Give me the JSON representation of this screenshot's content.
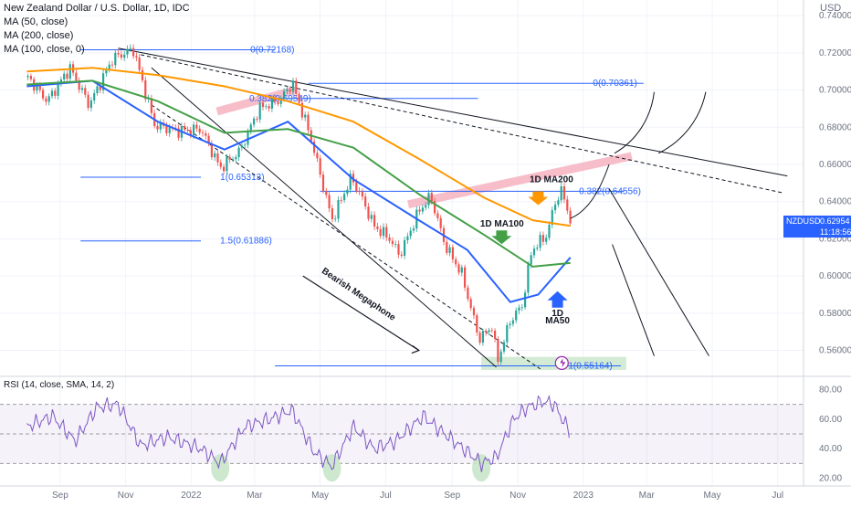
{
  "header": {
    "title": "New Zealand Dollar / U.S. Dollar, 1D, IDC",
    "ma_lines": [
      "MA (50, close)",
      "MA (200, close)",
      "MA (100, close, 0)"
    ],
    "currency": "USD"
  },
  "price_badge": {
    "symbol": "NZDUSD",
    "price": "0.62954",
    "countdown": "11:18:56"
  },
  "colors": {
    "ma50": "#2962ff",
    "ma100": "#43a047",
    "ma200": "#ff9800",
    "up": "#26a69a",
    "down": "#ef5350",
    "level": "#2962ff",
    "rsi": "#7e57c2",
    "resistance": "#f4a3b4",
    "support_zone": "#c8e6c9",
    "badge": "#2962ff"
  },
  "chart_data": [
    {
      "type": "line",
      "title": "New Zealand Dollar / U.S. Dollar, 1D, IDC",
      "x_ticks": [
        "Sep",
        "Nov",
        "2022",
        "Mar",
        "May",
        "Jul",
        "Sep",
        "Nov",
        "2023",
        "Mar",
        "May",
        "Jul"
      ],
      "y_ticks": [
        "0.74000",
        "0.72000",
        "0.70000",
        "0.68000",
        "0.66000",
        "0.64000",
        "0.62000",
        "0.60000",
        "0.58000",
        "0.56000"
      ],
      "ylim": [
        0.547,
        0.745
      ],
      "price_path": {
        "x": [
          "2021-08-02",
          "2021-08-20",
          "2021-09-10",
          "2021-09-28",
          "2021-10-20",
          "2021-11-08",
          "2021-11-28",
          "2021-12-20",
          "2022-01-10",
          "2022-01-28",
          "2022-02-15",
          "2022-03-05",
          "2022-03-25",
          "2022-04-05",
          "2022-04-22",
          "2022-05-12",
          "2022-05-30",
          "2022-06-08",
          "2022-06-20",
          "2022-07-05",
          "2022-07-14",
          "2022-08-01",
          "2022-08-12",
          "2022-08-25",
          "2022-09-10",
          "2022-09-26",
          "2022-10-08",
          "2022-10-13",
          "2022-10-25",
          "2022-11-05",
          "2022-11-14",
          "2022-11-28",
          "2022-12-06",
          "2022-12-12",
          "2022-12-20"
        ],
        "y": [
          0.707,
          0.694,
          0.712,
          0.692,
          0.717,
          0.722,
          0.681,
          0.678,
          0.679,
          0.658,
          0.667,
          0.69,
          0.695,
          0.704,
          0.675,
          0.63,
          0.653,
          0.643,
          0.627,
          0.62,
          0.611,
          0.635,
          0.643,
          0.617,
          0.601,
          0.566,
          0.573,
          0.554,
          0.576,
          0.584,
          0.614,
          0.622,
          0.64,
          0.646,
          0.63
        ]
      },
      "series": [
        {
          "name": "MA (50, close)",
          "x": [
            "2021-08-01",
            "2021-10-01",
            "2021-12-01",
            "2022-02-01",
            "2022-04-01",
            "2022-06-01",
            "2022-08-01",
            "2022-09-15",
            "2022-10-25",
            "2022-11-20",
            "2022-12-20"
          ],
          "y": [
            0.702,
            0.705,
            0.683,
            0.668,
            0.683,
            0.652,
            0.63,
            0.614,
            0.586,
            0.59,
            0.61
          ]
        },
        {
          "name": "MA (100, close, 0)",
          "x": [
            "2021-08-01",
            "2021-10-01",
            "2021-12-01",
            "2022-02-01",
            "2022-04-01",
            "2022-06-01",
            "2022-08-01",
            "2022-10-01",
            "2022-11-15",
            "2022-12-20"
          ],
          "y": [
            0.703,
            0.705,
            0.694,
            0.677,
            0.679,
            0.669,
            0.644,
            0.622,
            0.605,
            0.607
          ]
        },
        {
          "name": "MA (200, close)",
          "x": [
            "2021-08-01",
            "2021-10-01",
            "2021-12-01",
            "2022-02-01",
            "2022-04-01",
            "2022-06-01",
            "2022-08-01",
            "2022-10-01",
            "2022-11-15",
            "2022-12-20"
          ],
          "y": [
            0.71,
            0.712,
            0.708,
            0.702,
            0.694,
            0.683,
            0.663,
            0.642,
            0.63,
            0.627
          ]
        }
      ],
      "fib_levels": [
        {
          "label": "0(0.72168)",
          "value": 0.72168
        },
        {
          "label": "0.382(0.69549)",
          "value": 0.69549
        },
        {
          "label": "1(0.65313)",
          "value": 0.65313
        },
        {
          "label": "1.5(0.61886)",
          "value": 0.61886
        },
        {
          "label": "0(0.70361)",
          "value": 0.70361
        },
        {
          "label": "0.382(0.64556)",
          "value": 0.64556
        },
        {
          "label": "1(0.55164)",
          "value": 0.55164
        }
      ],
      "annotations": [
        "Bearish Megaphone",
        "1D MA200",
        "1D MA100",
        "1D MA50"
      ]
    },
    {
      "type": "line",
      "title": "RSI (14, close, SMA, 14, 2)",
      "y_ticks": [
        "80.00",
        "60.00",
        "40.00",
        "20.00"
      ],
      "ylim": [
        16,
        84
      ],
      "bands": [
        70,
        50,
        30
      ],
      "series": [
        {
          "name": "RSI (14, close, SMA, 14, 2)",
          "x": [
            "2021-08-01",
            "2021-08-25",
            "2021-09-15",
            "2021-10-05",
            "2021-10-25",
            "2021-11-15",
            "2021-12-10",
            "2022-01-10",
            "2022-01-28",
            "2022-02-20",
            "2022-03-15",
            "2022-04-05",
            "2022-04-25",
            "2022-05-12",
            "2022-06-01",
            "2022-06-20",
            "2022-07-10",
            "2022-08-05",
            "2022-08-25",
            "2022-09-15",
            "2022-09-28",
            "2022-10-12",
            "2022-10-28",
            "2022-11-10",
            "2022-11-25",
            "2022-12-05",
            "2022-12-14",
            "2022-12-20"
          ],
          "y": [
            55,
            62,
            45,
            68,
            70,
            42,
            48,
            40,
            30,
            55,
            60,
            66,
            38,
            28,
            55,
            40,
            45,
            62,
            50,
            38,
            30,
            34,
            60,
            68,
            72,
            70,
            58,
            51
          ]
        }
      ]
    }
  ]
}
